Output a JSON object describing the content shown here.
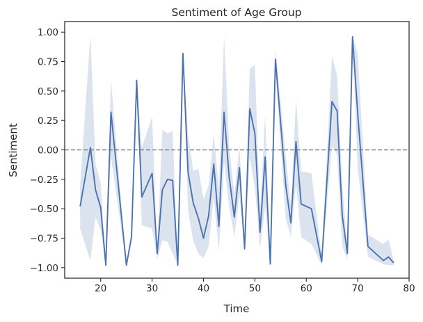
{
  "chart_data": {
    "type": "line",
    "title": "Sentiment of Age Group",
    "xlabel": "Time",
    "ylabel": "Sentiment",
    "xlim": [
      13,
      80
    ],
    "ylim": [
      -1.09,
      1.09
    ],
    "x_ticks": [
      20,
      30,
      40,
      50,
      60,
      70,
      80
    ],
    "y_ticks": [
      -1.0,
      -0.75,
      -0.5,
      -0.25,
      0.0,
      0.25,
      0.5,
      0.75,
      1.0
    ],
    "y_tick_labels": [
      "−1.00",
      "−0.75",
      "−0.50",
      "−0.25",
      "0.00",
      "0.25",
      "0.50",
      "0.75",
      "1.00"
    ],
    "reference_line": {
      "y": 0.0,
      "style": "dashed",
      "color": "#808080"
    },
    "grid": false,
    "colors": {
      "line": "#4c72b0",
      "band": "#4c72b0",
      "axis": "#262626"
    },
    "series": [
      {
        "points": [
          [
            16,
            -0.48
          ],
          [
            18,
            0.02
          ],
          [
            19,
            -0.34
          ],
          [
            20,
            -0.49
          ],
          [
            21,
            -0.98
          ],
          [
            22,
            0.32
          ],
          [
            25,
            -0.98
          ],
          [
            26,
            -0.74
          ],
          [
            27,
            0.59
          ],
          [
            28,
            -0.4
          ],
          [
            30,
            -0.2
          ],
          [
            31,
            -0.88
          ],
          [
            32,
            -0.34
          ],
          [
            33,
            -0.25
          ],
          [
            34,
            -0.26
          ],
          [
            35,
            -0.98
          ],
          [
            36,
            0.82
          ],
          [
            37,
            -0.19
          ],
          [
            38,
            -0.45
          ],
          [
            39,
            -0.58
          ],
          [
            40,
            -0.75
          ],
          [
            41,
            -0.56
          ],
          [
            42,
            -0.12
          ],
          [
            43,
            -0.65
          ],
          [
            44,
            0.32
          ],
          [
            45,
            -0.23
          ],
          [
            46,
            -0.57
          ],
          [
            47,
            -0.15
          ],
          [
            48,
            -0.84
          ],
          [
            49,
            0.35
          ],
          [
            50,
            0.14
          ],
          [
            51,
            -0.7
          ],
          [
            52,
            -0.06
          ],
          [
            53,
            -0.97
          ],
          [
            54,
            0.77
          ],
          [
            56,
            -0.3
          ],
          [
            57,
            -0.62
          ],
          [
            58,
            0.07
          ],
          [
            59,
            -0.46
          ],
          [
            61,
            -0.5
          ],
          [
            63,
            -0.95
          ],
          [
            65,
            0.41
          ],
          [
            66,
            0.33
          ],
          [
            67,
            -0.56
          ],
          [
            68,
            -0.88
          ],
          [
            69,
            0.96
          ],
          [
            70,
            0.31
          ],
          [
            72,
            -0.82
          ],
          [
            75,
            -0.94
          ],
          [
            76,
            -0.91
          ],
          [
            77,
            -0.96
          ]
        ],
        "ci_lower": [
          -0.67,
          -0.94,
          -0.57,
          -0.68,
          -0.98,
          -0.06,
          -0.98,
          -0.78,
          0.59,
          -0.64,
          -0.67,
          -0.93,
          -0.77,
          -0.78,
          -0.88,
          -0.98,
          0.82,
          -0.52,
          -0.77,
          -0.88,
          -0.92,
          -0.82,
          -0.4,
          -0.86,
          -0.1,
          -0.48,
          -0.74,
          -0.38,
          -0.87,
          -0.06,
          -0.32,
          -0.84,
          -0.48,
          -0.98,
          0.67,
          -0.58,
          -0.74,
          -0.29,
          -0.74,
          -0.8,
          -0.98,
          0.03,
          -0.04,
          -0.82,
          -0.93,
          0.96,
          -0.16,
          -0.91,
          -0.97,
          -0.98,
          -0.98
        ],
        "ci_upper": [
          -0.3,
          0.98,
          -0.12,
          -0.28,
          -0.98,
          0.6,
          -0.98,
          -0.7,
          0.59,
          0.02,
          0.28,
          -0.84,
          0.17,
          0.14,
          0.16,
          -0.98,
          0.82,
          0.13,
          -0.18,
          -0.16,
          -0.42,
          -0.3,
          0.14,
          -0.34,
          0.97,
          0.03,
          -0.38,
          0.04,
          -0.8,
          0.69,
          0.72,
          -0.55,
          0.3,
          -0.95,
          0.86,
          -0.05,
          -0.48,
          0.43,
          -0.18,
          -0.2,
          -0.9,
          0.8,
          0.63,
          -0.3,
          -0.84,
          0.96,
          0.82,
          -0.72,
          -0.8,
          -0.76,
          -0.94
        ]
      }
    ]
  }
}
